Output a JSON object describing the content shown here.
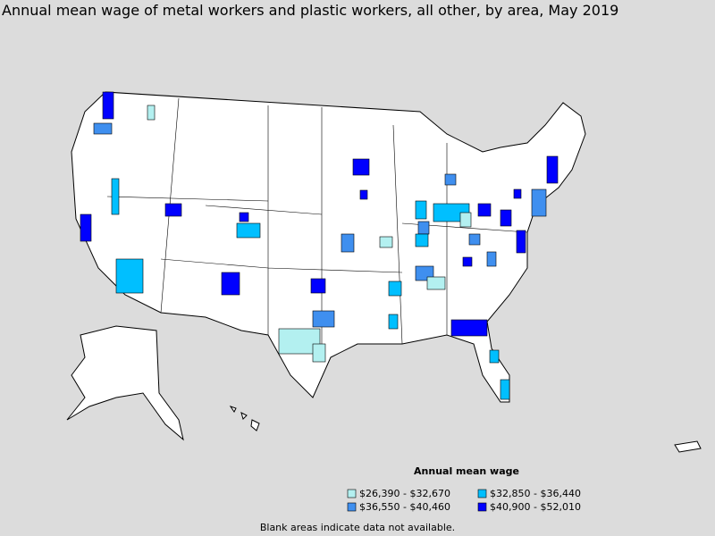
{
  "title": "Annual mean wage of metal workers and plastic workers, all other, by area, May 2019",
  "legend": {
    "title": "Annual mean wage",
    "items": [
      {
        "label": "$26,390 - $32,670",
        "color": "#b3f0f0"
      },
      {
        "label": "$36,550 - $40,460",
        "color": "#3f8fef"
      },
      {
        "label": "$32,850 - $36,440",
        "color": "#00bfff"
      },
      {
        "label": "$40,900 - $52,010",
        "color": "#0000ff"
      }
    ]
  },
  "note": "Blank areas indicate data not available."
}
